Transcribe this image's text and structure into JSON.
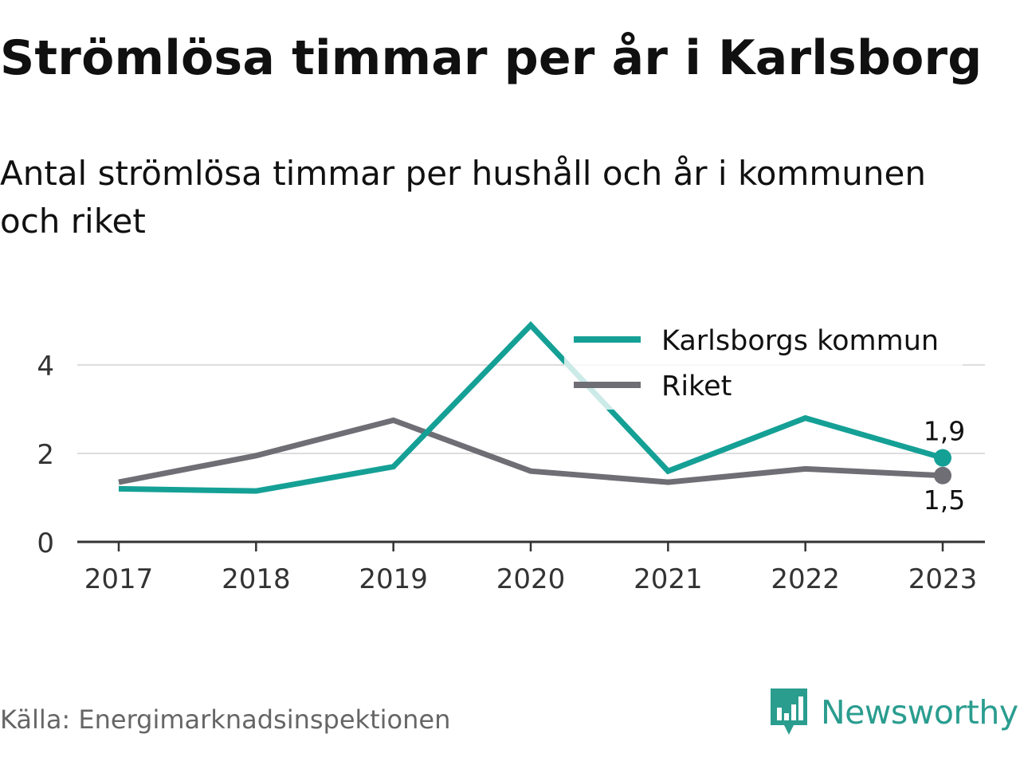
{
  "title": "Strömlösa timmar per år i Karlsborg",
  "subtitle": "Antal strömlösa timmar per hushåll och år i kommunen och riket",
  "source": "Källa: Energimarknadsinspektionen",
  "brand": {
    "name": "Newsworthy",
    "icon": "newsworthy-logo-icon",
    "color": "#2a9d8f"
  },
  "chart_data": {
    "type": "line",
    "categories": [
      "2017",
      "2018",
      "2019",
      "2020",
      "2021",
      "2022",
      "2023"
    ],
    "ylim": [
      0,
      5
    ],
    "yticks": [
      0,
      2,
      4
    ],
    "ytick_labels": [
      "0",
      "2",
      "4"
    ],
    "grid": true,
    "legend": "top-right",
    "series": [
      {
        "name": "Karlsborgs kommun",
        "color": "#15a096",
        "values": [
          1.2,
          1.15,
          1.7,
          4.9,
          1.6,
          2.8,
          1.9
        ],
        "end_label": "1,9"
      },
      {
        "name": "Riket",
        "color": "#6f6e75",
        "values": [
          1.35,
          1.95,
          2.75,
          1.6,
          1.35,
          1.65,
          1.5
        ],
        "end_label": "1,5"
      }
    ]
  }
}
